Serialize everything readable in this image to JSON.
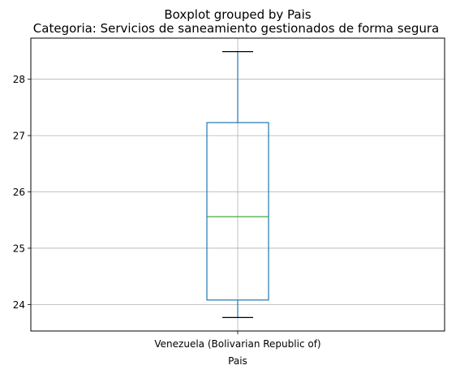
{
  "chart_data": {
    "type": "box",
    "title": "Boxplot grouped by Pais",
    "subtitle": "Categoria: Servicios de saneamiento gestionados de forma segura",
    "xlabel": "Pais",
    "ylabel": "",
    "categories": [
      "Venezuela (Bolivarian Republic of)"
    ],
    "ylim": [
      23.53,
      28.73
    ],
    "yticks": [
      24,
      25,
      26,
      27,
      28
    ],
    "grid": true,
    "boxes": [
      {
        "category": "Venezuela (Bolivarian Republic of)",
        "whisker_low": 23.77,
        "q1": 24.08,
        "median": 25.56,
        "q3": 27.23,
        "whisker_high": 28.49
      }
    ],
    "colors": {
      "box": "#1f77b4",
      "median": "#2ca02c",
      "whisker": "#1f77b4",
      "cap": "#000000",
      "grid": "#b0b0b0"
    }
  }
}
